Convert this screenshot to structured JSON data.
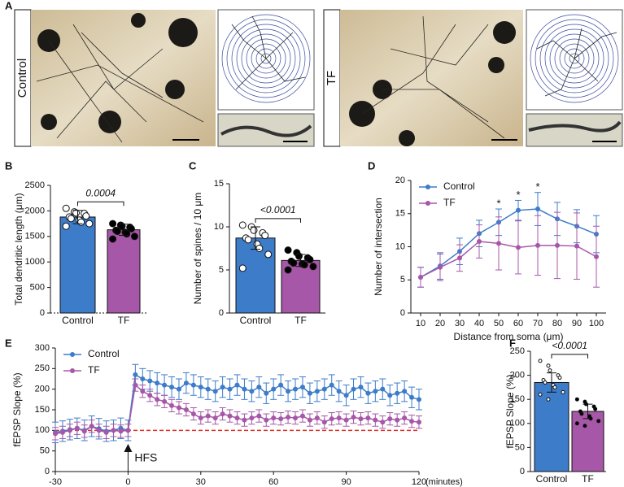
{
  "images": {
    "panel": "A",
    "labels": [
      "Control",
      "TF"
    ]
  },
  "chart_data": [
    {
      "type": "bar",
      "panel": "B",
      "ylabel": "Total dendritic length (μm)",
      "categories": [
        "Control",
        "TF"
      ],
      "values": [
        1880,
        1630
      ],
      "errors": [
        130,
        110
      ],
      "colors": [
        "#3d7cc9",
        "#a757a8"
      ],
      "points": [
        [
          2050,
          1980,
          1960,
          1950,
          1900,
          1880,
          1850,
          1820,
          1780,
          1750,
          1700
        ],
        [
          1750,
          1720,
          1700,
          1680,
          1650,
          1620,
          1600,
          1580,
          1550,
          1500,
          1450
        ]
      ],
      "point_colors": [
        "#ffffff",
        "#000000"
      ],
      "ylim": [
        0,
        2500
      ],
      "yticks": [
        0,
        500,
        1000,
        1500,
        2000,
        2500
      ],
      "annotation": "0.0004"
    },
    {
      "type": "bar",
      "panel": "C",
      "ylabel": "Number of spines / 10 μm",
      "categories": [
        "Control",
        "TF"
      ],
      "values": [
        8.7,
        6.1
      ],
      "errors": [
        1.3,
        0.7
      ],
      "colors": [
        "#3d7cc9",
        "#a757a8"
      ],
      "points": [
        [
          10.2,
          10.0,
          9.6,
          9.3,
          9.0,
          8.7,
          8.5,
          8.0,
          7.5,
          6.8,
          5.2
        ],
        [
          7.3,
          7.0,
          6.6,
          6.4,
          6.2,
          6.0,
          5.8,
          5.7,
          5.6,
          5.4,
          5.0
        ]
      ],
      "point_colors": [
        "#ffffff",
        "#000000"
      ],
      "ylim": [
        0,
        15
      ],
      "yticks": [
        0,
        5,
        10,
        15
      ],
      "annotation": "<0.0001"
    },
    {
      "type": "line",
      "panel": "D",
      "xlabel": "Distance from soma  (μm)",
      "ylabel": "Number of intersection",
      "x": [
        10,
        20,
        30,
        40,
        50,
        60,
        70,
        80,
        90,
        100
      ],
      "series": [
        {
          "name": "Control",
          "color": "#3d7cc9",
          "values": [
            5.4,
            7.1,
            9.3,
            12.0,
            13.7,
            15.5,
            15.7,
            14.2,
            13.1,
            11.9
          ],
          "errors": [
            1.5,
            2.0,
            2.0,
            2.0,
            2.0,
            1.5,
            2.5,
            2.5,
            2.5,
            2.8
          ]
        },
        {
          "name": "TF",
          "color": "#a757a8",
          "values": [
            5.4,
            6.9,
            8.3,
            10.8,
            10.5,
            9.9,
            10.2,
            10.2,
            10.1,
            8.5
          ],
          "errors": [
            1.5,
            2.0,
            2.0,
            2.5,
            4.0,
            4.0,
            4.5,
            5.0,
            5.0,
            4.6
          ]
        }
      ],
      "xlim": [
        5,
        105
      ],
      "ylim": [
        0,
        20
      ],
      "xticks": [
        10,
        20,
        30,
        40,
        50,
        60,
        70,
        80,
        90,
        100
      ],
      "yticks": [
        0,
        5,
        10,
        15,
        20
      ],
      "legend": "upper left",
      "stars": {
        "x": [
          50,
          60,
          70
        ],
        "label": "*"
      }
    },
    {
      "type": "line",
      "panel": "E",
      "xlabel": "(minutes)",
      "ylabel": "fEPSP Slope (%)",
      "x": [
        -30,
        -27,
        -24,
        -21,
        -18,
        -15,
        -12,
        -9,
        -6,
        -3,
        0,
        3,
        6,
        9,
        12,
        15,
        18,
        21,
        24,
        27,
        30,
        33,
        36,
        39,
        42,
        45,
        48,
        51,
        54,
        57,
        60,
        63,
        66,
        69,
        72,
        75,
        78,
        81,
        84,
        87,
        90,
        93,
        96,
        99,
        102,
        105,
        108,
        111,
        114,
        117,
        120
      ],
      "series": [
        {
          "name": "Control",
          "color": "#3d7cc9",
          "error": 25,
          "values": [
            95,
            98,
            102,
            105,
            100,
            110,
            104,
            98,
            100,
            105,
            100,
            235,
            225,
            220,
            215,
            210,
            205,
            200,
            215,
            210,
            205,
            200,
            195,
            205,
            200,
            210,
            200,
            195,
            205,
            190,
            200,
            210,
            195,
            200,
            205,
            190,
            195,
            200,
            210,
            195,
            185,
            200,
            205,
            190,
            195,
            200,
            185,
            190,
            195,
            180,
            175
          ]
        },
        {
          "name": "TF",
          "color": "#a757a8",
          "error": 15,
          "values": [
            92,
            95,
            100,
            105,
            98,
            110,
            100,
            95,
            100,
            98,
            100,
            210,
            195,
            185,
            175,
            170,
            160,
            155,
            150,
            140,
            130,
            135,
            130,
            140,
            135,
            130,
            125,
            130,
            135,
            125,
            130,
            128,
            132,
            130,
            135,
            125,
            130,
            120,
            128,
            130,
            125,
            132,
            128,
            130,
            125,
            120,
            128,
            125,
            130,
            122,
            120
          ]
        }
      ],
      "xlim": [
        -30,
        120
      ],
      "ylim": [
        0,
        300
      ],
      "xticks": [
        -30,
        0,
        30,
        60,
        90,
        120
      ],
      "yticks": [
        0,
        50,
        100,
        150,
        200,
        250,
        300
      ],
      "legend": "upper left",
      "reference_line": 100,
      "reference_color": "#e0302a",
      "arrow": {
        "x": 0,
        "label": "HFS"
      }
    },
    {
      "type": "bar",
      "panel": "F",
      "ylabel": "fEPSP Slope (%)",
      "categories": [
        "Control",
        "TF"
      ],
      "values": [
        185,
        125
      ],
      "errors": [
        20,
        15
      ],
      "colors": [
        "#3d7cc9",
        "#a757a8"
      ],
      "points": [
        [
          230,
          220,
          210,
          200,
          195,
          190,
          185,
          180,
          175,
          165,
          160,
          150
        ],
        [
          150,
          145,
          140,
          135,
          130,
          125,
          120,
          115,
          110,
          105,
          100,
          95
        ]
      ],
      "point_colors": [
        "#ffffff",
        "#000000"
      ],
      "ylim": [
        0,
        250
      ],
      "yticks": [
        0,
        50,
        100,
        150,
        200,
        250
      ],
      "annotation": "<0.0001"
    }
  ]
}
